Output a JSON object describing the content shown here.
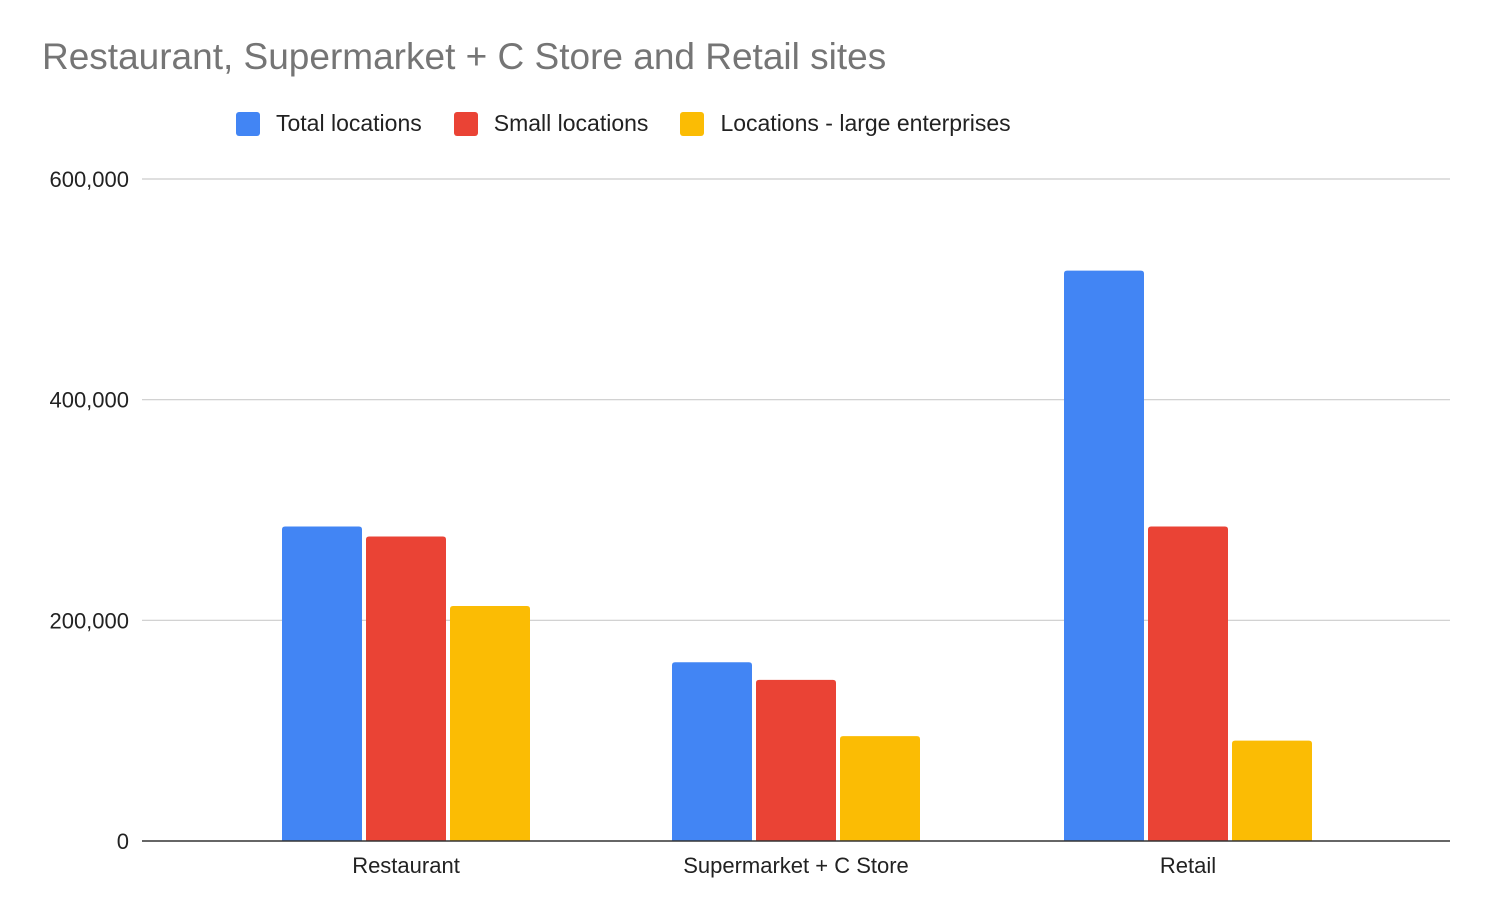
{
  "chart_data": {
    "type": "bar",
    "title": "Restaurant, Supermarket + C Store and Retail sites",
    "xlabel": "",
    "ylabel": "",
    "categories": [
      "Restaurant",
      "Supermarket + C Store",
      "Retail"
    ],
    "series": [
      {
        "name": "Total locations",
        "values": [
          285000,
          162000,
          517000
        ],
        "color": "#4285F4"
      },
      {
        "name": "Small locations",
        "values": [
          276000,
          146000,
          285000
        ],
        "color": "#EA4335"
      },
      {
        "name": "Locations - large enterprises",
        "values": [
          213000,
          95000,
          91000
        ],
        "color": "#FBBC04"
      }
    ],
    "ylim": [
      0,
      600000
    ],
    "yticks": [
      0,
      200000,
      400000,
      600000
    ],
    "ytick_labels": [
      "0",
      "200,000",
      "400,000",
      "600,000"
    ],
    "grid": true,
    "legend_position": "top"
  }
}
